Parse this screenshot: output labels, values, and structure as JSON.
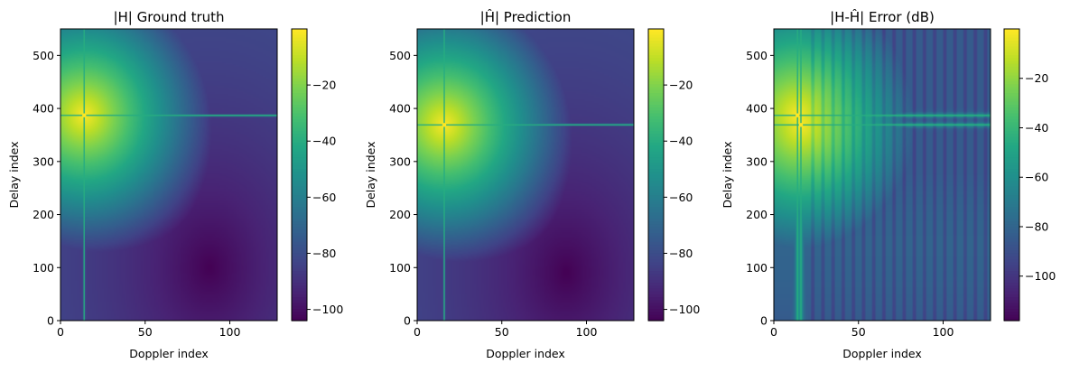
{
  "chart_data": [
    {
      "type": "heatmap",
      "title": "|H| Ground truth",
      "xlabel": "Doppler index",
      "ylabel": "Delay index",
      "xlim": [
        0,
        128
      ],
      "ylim": [
        0,
        550
      ],
      "xticks": [
        0,
        50,
        100
      ],
      "yticks": [
        0,
        100,
        200,
        300,
        400,
        500
      ],
      "colormap": "viridis",
      "colorbar": {
        "vmin": -104,
        "vmax": 0,
        "ticks": [
          -100,
          -80,
          -60,
          -40,
          -20
        ]
      },
      "peak": {
        "doppler": 14,
        "delay": 387,
        "value": 0
      },
      "floor_minimum": {
        "doppler": 88,
        "delay": 100,
        "value": -104
      }
    },
    {
      "type": "heatmap",
      "title": "|Ĥ| Prediction",
      "xlabel": "Doppler index",
      "ylabel": "Delay index",
      "xlim": [
        0,
        128
      ],
      "ylim": [
        0,
        550
      ],
      "xticks": [
        0,
        50,
        100
      ],
      "yticks": [
        0,
        100,
        200,
        300,
        400,
        500
      ],
      "colormap": "viridis",
      "colorbar": {
        "vmin": -104,
        "vmax": 0,
        "ticks": [
          -100,
          -80,
          -60,
          -40,
          -20
        ]
      },
      "peak": {
        "doppler": 16,
        "delay": 369,
        "value": 0
      },
      "floor_minimum": {
        "doppler": 88,
        "delay": 90,
        "value": -104
      }
    },
    {
      "type": "heatmap",
      "title": "|H-Ĥ| Error (dB)",
      "xlabel": "Doppler index",
      "ylabel": "Delay index",
      "xlim": [
        0,
        128
      ],
      "ylim": [
        0,
        550
      ],
      "xticks": [
        0,
        50,
        100
      ],
      "yticks": [
        0,
        100,
        200,
        300,
        400,
        500
      ],
      "colormap": "viridis",
      "colorbar": {
        "vmin": -118,
        "vmax": 0,
        "ticks": [
          -100,
          -80,
          -60,
          -40,
          -20
        ]
      },
      "peaks": [
        {
          "doppler": 14,
          "delay": 387,
          "value": 0
        },
        {
          "doppler": 16,
          "delay": 369,
          "value": 0
        }
      ],
      "null_stripe_spacing": 6
    }
  ]
}
